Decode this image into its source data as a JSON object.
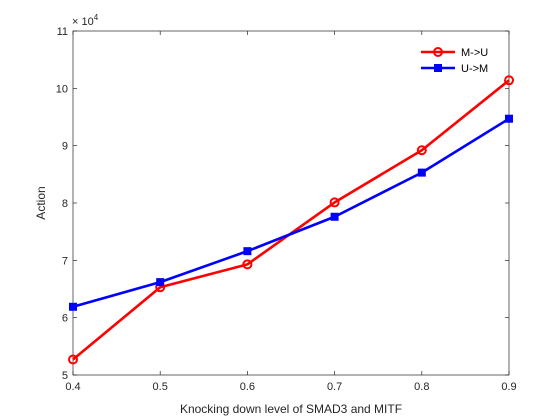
{
  "chart_data": {
    "type": "line",
    "title": "",
    "xlabel": "Knocking down level of SMAD3 and MITF",
    "ylabel": "Action",
    "x": [
      0.4,
      0.5,
      0.6,
      0.7,
      0.8,
      0.9
    ],
    "xlim": [
      0.4,
      0.9
    ],
    "ylim": [
      5,
      11
    ],
    "x_ticks": [
      "0.4",
      "0.5",
      "0.6",
      "0.7",
      "0.8",
      "0.9"
    ],
    "y_ticks": [
      "5",
      "6",
      "7",
      "8",
      "9",
      "10",
      "11"
    ],
    "y_tick_values": [
      5,
      6,
      7,
      8,
      9,
      10,
      11
    ],
    "y_exponent_base": "× 10",
    "y_exponent_power": "4",
    "grid": false,
    "legend_position": "top-right",
    "series": [
      {
        "name": "M->U",
        "color": "#ff0000",
        "marker": "circle",
        "values": [
          5.27,
          6.53,
          6.93,
          8.01,
          8.92,
          10.14
        ]
      },
      {
        "name": "U->M",
        "color": "#0000ff",
        "marker": "square",
        "values": [
          6.19,
          6.62,
          7.16,
          7.76,
          8.53,
          9.47
        ]
      }
    ]
  }
}
